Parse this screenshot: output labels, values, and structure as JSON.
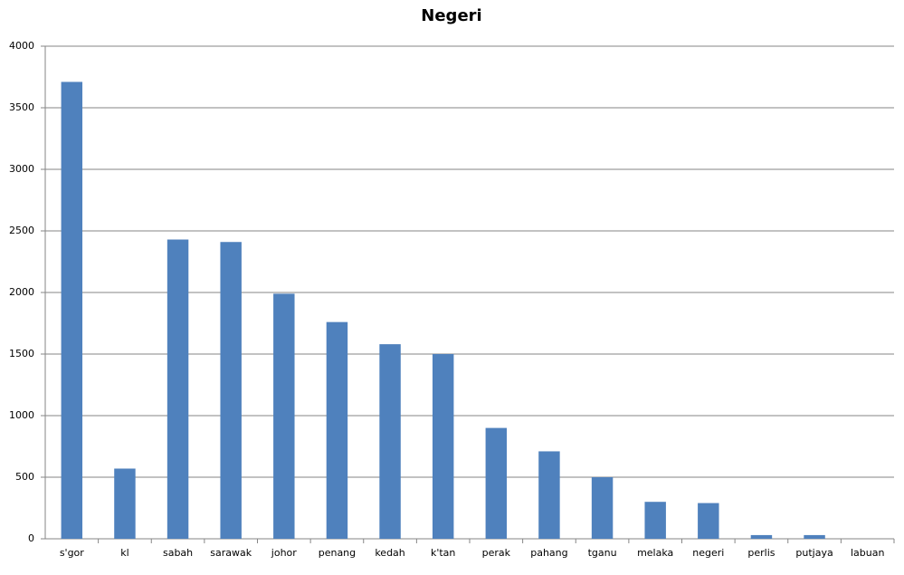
{
  "chart_data": {
    "type": "bar",
    "title": "Negeri",
    "categories": [
      "s'gor",
      "kl",
      "sabah",
      "sarawak",
      "johor",
      "penang",
      "kedah",
      "k'tan",
      "perak",
      "pahang",
      "tganu",
      "melaka",
      "negeri",
      "perlis",
      "putjaya",
      "labuan"
    ],
    "values": [
      3710,
      570,
      2430,
      2410,
      1990,
      1760,
      1580,
      1500,
      900,
      710,
      500,
      300,
      290,
      30,
      30,
      0
    ],
    "color": "#4f81bd",
    "ylim": [
      0,
      4000
    ],
    "yticks": [
      0,
      500,
      1000,
      1500,
      2000,
      2500,
      3000,
      3500,
      4000
    ],
    "grid": true
  }
}
